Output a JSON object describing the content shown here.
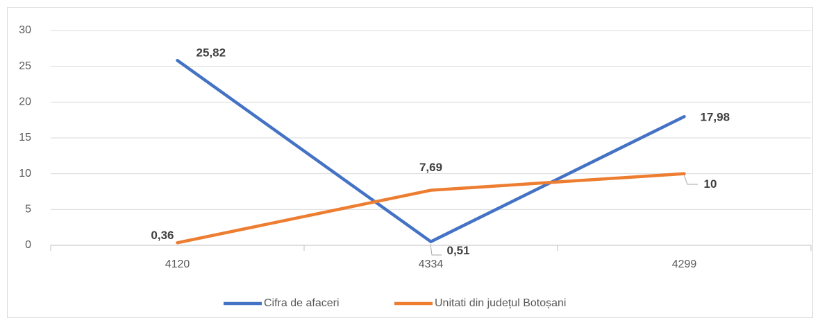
{
  "chart_data": {
    "type": "line",
    "categories": [
      "4120",
      "4334",
      "4299"
    ],
    "series": [
      {
        "name": "Cifra de afaceri",
        "color": "#4472c4",
        "values": [
          25.82,
          0.51,
          17.98
        ],
        "value_labels": [
          "25,82",
          "0,51",
          "17,98"
        ]
      },
      {
        "name": "Unitati din județul Botoșani",
        "color": "#ed7d31",
        "values": [
          0.36,
          7.69,
          10
        ],
        "value_labels": [
          "0,36",
          "7,69",
          "10"
        ]
      }
    ],
    "ylim": [
      0,
      30
    ],
    "yticks": [
      0,
      5,
      10,
      15,
      20,
      25,
      30
    ],
    "grid": true,
    "legend": "bottom"
  }
}
